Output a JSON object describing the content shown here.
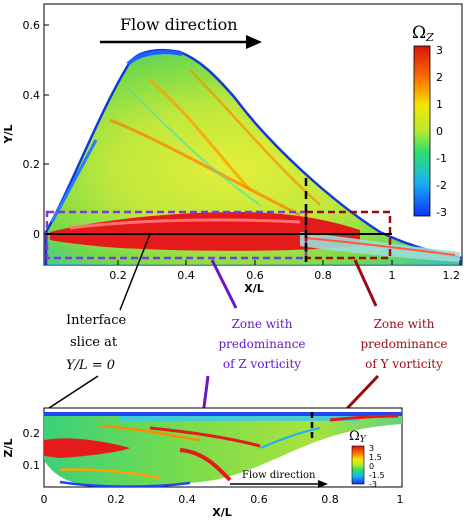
{
  "top_plot": {
    "arrow_label": "Flow direction",
    "colorbar": {
      "title": "Ω",
      "title_sub": "Z",
      "ticks": [
        "3",
        "2",
        "1",
        "0",
        "-1",
        "-2",
        "-3"
      ]
    },
    "x_axis": {
      "label": "X/L",
      "ticks": [
        "0.2",
        "0.4",
        "0.6",
        "0.8",
        "1",
        "1.2"
      ]
    },
    "y_axis": {
      "label": "Y/L",
      "ticks": [
        "0.6",
        "0.4",
        "0.2",
        "0"
      ]
    }
  },
  "annotations": {
    "interface": [
      "Interface",
      "slice at",
      "Y/L = 0"
    ],
    "zone_z": [
      "Zone with",
      "predominance",
      "of Z vorticity"
    ],
    "zone_y": [
      "Zone with",
      "predominance",
      "of Y vorticity"
    ]
  },
  "bottom_plot": {
    "arrow_label": "Flow direction",
    "colorbar": {
      "title": "Ω",
      "title_sub": "Y",
      "ticks": [
        "3",
        "1.5",
        "0",
        "-1.5",
        "-3"
      ]
    },
    "x_axis": {
      "label": "X/L",
      "ticks": [
        "0",
        "0.2",
        "0.4",
        "0.6",
        "0.8",
        "1"
      ]
    },
    "y_axis": {
      "label": "Z/L",
      "ticks": [
        "0.2",
        "0.1"
      ]
    }
  },
  "colors": {
    "zone_z_box": "#7b3bd4",
    "zone_y_box": "#9b0a12",
    "annotation_purple": "#6a17c9",
    "annotation_red": "#9b0a12"
  }
}
